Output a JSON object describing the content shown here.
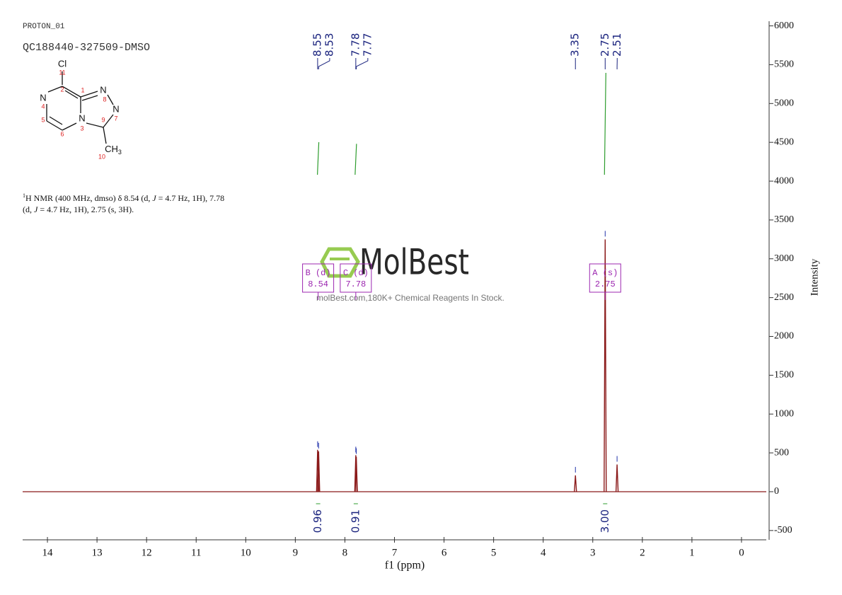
{
  "chart_data": {
    "type": "nmr",
    "title": "PROTON_01",
    "subtitle": "QC188440-327509-DMSO",
    "description": [
      [
        "1",
        "H NMR (400 MHz, dmso) δ 8.54 (d, ",
        "J",
        " = 4.7 Hz, 1H), 7.78"
      ],
      [
        "(d, ",
        "J",
        " = 4.7 Hz, 1H), 2.75 (s, 3H)."
      ]
    ],
    "structure": {
      "atoms": [
        "Cl",
        "N",
        "N",
        "N",
        "N"
      ],
      "methyl": [
        "CH",
        "3"
      ],
      "numbers": [
        "11",
        "2",
        "1",
        "8",
        "7",
        "4",
        "5",
        "6",
        "3",
        "9",
        "10"
      ]
    },
    "xlabel": "f1 (ppm)",
    "ylabel": "Intensity",
    "xlim": [
      14.5,
      -0.5
    ],
    "xticks": [
      14,
      13,
      12,
      11,
      10,
      9,
      8,
      7,
      6,
      5,
      4,
      3,
      2,
      1,
      0
    ],
    "ylim": [
      -620,
      6060
    ],
    "yticks": [
      -500,
      0,
      500,
      1000,
      1500,
      2000,
      2500,
      3000,
      3500,
      4000,
      4500,
      5000,
      5500,
      6000
    ],
    "series": [
      {
        "name": "spectrum",
        "color": "#8b1a1a",
        "x": [
          8.55,
          8.53,
          7.78,
          7.77,
          3.35,
          2.75,
          2.51
        ],
        "values": [
          540,
          520,
          470,
          450,
          210,
          3250,
          350
        ]
      }
    ],
    "multiplets": [
      {
        "label": "B (d)",
        "shift": 8.54
      },
      {
        "label": "C (d)",
        "shift": 7.78
      },
      {
        "label": "A (s)",
        "shift": 2.75
      }
    ],
    "integrals": [
      {
        "shift": 8.54,
        "value": 0.96
      },
      {
        "shift": 7.78,
        "value": 0.91
      },
      {
        "shift": 2.75,
        "value": 3.0
      }
    ],
    "integral_labels": [
      "0.96",
      "0.91",
      "3.00"
    ],
    "watermark": {
      "brand": "MolBest",
      "tagline": "molBest.com,180K+ Chemical Reagents In Stock."
    }
  }
}
